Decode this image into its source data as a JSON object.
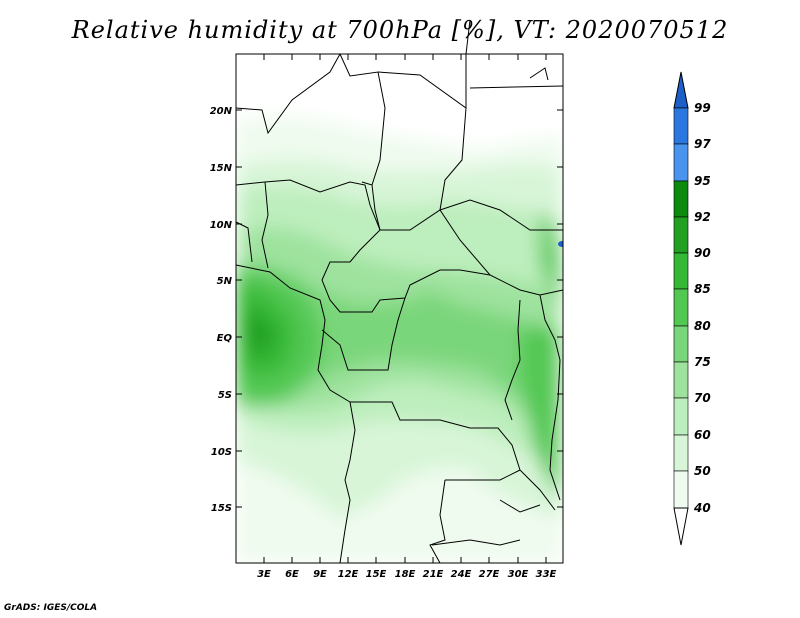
{
  "title": "Relative humidity at 700hPa [%], VT: 2020070512",
  "map": {
    "lat_labels": [
      "20N",
      "15N",
      "10N",
      "5N",
      "EQ",
      "5S",
      "10S",
      "15S"
    ],
    "lon_labels": [
      "3E",
      "6E",
      "9E",
      "12E",
      "15E",
      "18E",
      "21E",
      "24E",
      "27E",
      "30E",
      "33E"
    ]
  },
  "colorbar": {
    "labels": [
      "99",
      "97",
      "95",
      "92",
      "90",
      "85",
      "80",
      "75",
      "70",
      "60",
      "50",
      "40"
    ],
    "colors": [
      "#1c5fc8",
      "#2b77e0",
      "#4a94ee",
      "#0e8a0e",
      "#22a022",
      "#35b835",
      "#52c852",
      "#7ad67a",
      "#9ee29e",
      "#bdeebd",
      "#d8f5d8",
      "#effbef"
    ]
  },
  "credit": "GrADS: IGES/COLA"
}
